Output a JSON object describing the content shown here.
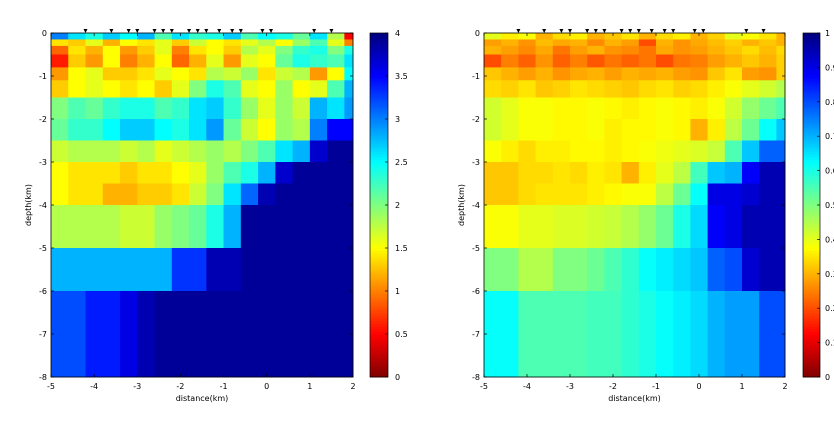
{
  "chart_data": [
    {
      "type": "heatmap",
      "title": "",
      "xlabel": "distance(km)",
      "ylabel": "depth(km)",
      "xlim": [
        -5,
        2
      ],
      "ylim": [
        -8,
        0
      ],
      "x_ticks": [
        -5,
        -4,
        -3,
        -2,
        -1,
        0,
        1,
        2
      ],
      "y_ticks": [
        0,
        -1,
        -2,
        -3,
        -4,
        -5,
        -6,
        -7,
        -8
      ],
      "colorbar": {
        "min": 0,
        "max": 4,
        "ticks": [
          0,
          0.5,
          1,
          1.5,
          2,
          2.5,
          3,
          3.5,
          4
        ]
      },
      "station_x": [
        -4.2,
        -3.6,
        -3.2,
        -3.0,
        -2.6,
        -2.4,
        -2.2,
        -1.8,
        -1.6,
        -1.4,
        -1.1,
        -0.8,
        -0.6,
        -0.1,
        0.1,
        1.1,
        1.5
      ],
      "x_edges": [
        -5,
        -4.6,
        -4.2,
        -3.8,
        -3.4,
        -3.0,
        -2.6,
        -2.2,
        -1.8,
        -1.4,
        -1.0,
        -0.6,
        -0.2,
        0.2,
        0.6,
        1.0,
        1.4,
        1.8,
        2.0
      ],
      "layers": [
        {
          "top": 0,
          "bottom": -0.15,
          "values": [
            3.0,
            2.6,
            2.4,
            2.7,
            2.5,
            2.8,
            2.2,
            2.6,
            2.3,
            2.4,
            2.7,
            2.2,
            2.5,
            2.4,
            2.1,
            2.6,
            1.8,
            0.5
          ]
        },
        {
          "top": -0.15,
          "bottom": -0.3,
          "values": [
            1.4,
            1.3,
            1.6,
            1.2,
            1.5,
            1.4,
            1.6,
            1.3,
            1.7,
            1.5,
            1.4,
            1.6,
            1.8,
            1.5,
            1.9,
            2.2,
            1.6,
            1.0
          ]
        },
        {
          "top": -0.3,
          "bottom": -0.5,
          "values": [
            0.9,
            1.4,
            1.2,
            1.5,
            1.1,
            1.3,
            1.6,
            1.0,
            1.4,
            1.5,
            1.3,
            1.8,
            1.6,
            2.0,
            2.3,
            2.4,
            2.0,
            2.4
          ]
        },
        {
          "top": -0.5,
          "bottom": -0.8,
          "values": [
            0.6,
            1.3,
            1.1,
            1.5,
            1.0,
            1.2,
            1.5,
            0.9,
            1.2,
            1.6,
            1.1,
            1.6,
            1.5,
            2.1,
            2.4,
            2.3,
            2.2,
            2.6
          ]
        },
        {
          "top": -0.8,
          "bottom": -1.1,
          "values": [
            1.1,
            1.5,
            1.6,
            1.3,
            1.3,
            1.4,
            1.6,
            1.5,
            1.4,
            1.8,
            1.7,
            1.9,
            1.4,
            1.7,
            1.8,
            1.1,
            1.5,
            2.5
          ]
        },
        {
          "top": -1.1,
          "bottom": -1.5,
          "values": [
            1.3,
            1.5,
            1.6,
            1.5,
            1.4,
            1.5,
            1.3,
            1.6,
            2.0,
            2.4,
            2.2,
            1.6,
            1.5,
            1.9,
            1.5,
            1.6,
            2.2,
            2.8
          ]
        },
        {
          "top": -1.5,
          "bottom": -2.0,
          "values": [
            2.0,
            2.2,
            2.1,
            2.3,
            2.4,
            2.4,
            2.2,
            2.3,
            2.6,
            2.7,
            2.3,
            1.9,
            1.6,
            1.9,
            1.7,
            2.8,
            2.6,
            2.9
          ]
        },
        {
          "top": -2.0,
          "bottom": -2.5,
          "values": [
            2.1,
            2.3,
            2.3,
            2.5,
            2.7,
            2.7,
            2.5,
            2.4,
            2.6,
            2.9,
            2.1,
            1.7,
            1.5,
            1.9,
            1.8,
            3.0,
            3.5,
            3.5
          ]
        },
        {
          "top": -2.5,
          "bottom": -3.0,
          "values": [
            1.7,
            1.8,
            1.8,
            1.8,
            1.7,
            1.8,
            1.6,
            1.7,
            1.8,
            1.9,
            1.8,
            2.0,
            2.2,
            2.6,
            2.8,
            3.7,
            3.9,
            3.9
          ]
        },
        {
          "top": -3.0,
          "bottom": -3.5,
          "values": [
            1.5,
            1.4,
            1.4,
            1.4,
            1.3,
            1.4,
            1.4,
            1.5,
            1.6,
            1.9,
            2.2,
            2.4,
            2.8,
            3.7,
            3.9,
            3.9,
            3.9,
            3.9
          ]
        },
        {
          "top": -3.5,
          "bottom": -4.0,
          "values": [
            1.5,
            1.4,
            1.4,
            1.2,
            1.2,
            1.3,
            1.3,
            1.4,
            1.7,
            2.0,
            2.6,
            3.1,
            3.8,
            3.9,
            3.9,
            3.9,
            3.9,
            3.9
          ]
        },
        {
          "top": -4.0,
          "bottom": -5.0,
          "values": [
            1.8,
            1.8,
            1.8,
            1.8,
            1.7,
            1.7,
            1.9,
            2.0,
            2.1,
            2.4,
            2.8,
            3.9,
            3.9,
            3.9,
            3.9,
            3.9,
            3.9,
            3.9
          ]
        },
        {
          "top": -5.0,
          "bottom": -6.0,
          "values": [
            2.8,
            2.8,
            2.8,
            2.8,
            2.8,
            2.8,
            2.8,
            3.3,
            3.3,
            3.8,
            3.8,
            3.9,
            3.9,
            3.9,
            3.9,
            3.9,
            3.9,
            3.9
          ]
        },
        {
          "top": -6.0,
          "bottom": -8.0,
          "values": [
            3.2,
            3.2,
            3.4,
            3.4,
            3.6,
            3.8,
            3.9,
            3.9,
            3.9,
            3.9,
            3.9,
            3.9,
            3.9,
            3.9,
            3.9,
            3.9,
            3.9,
            3.9
          ]
        }
      ]
    },
    {
      "type": "heatmap",
      "title": "",
      "xlabel": "distance(km)",
      "ylabel": "depth(km)",
      "xlim": [
        -5,
        2
      ],
      "ylim": [
        -8,
        0
      ],
      "x_ticks": [
        -5,
        -4,
        -3,
        -2,
        -1,
        0,
        1,
        2
      ],
      "y_ticks": [
        0,
        -1,
        -2,
        -3,
        -4,
        -5,
        -6,
        -7,
        -8
      ],
      "colorbar": {
        "min": 0,
        "max": 1,
        "ticks": [
          0,
          0.1,
          0.2,
          0.3,
          0.4,
          0.5,
          0.6,
          0.7,
          0.8,
          0.9,
          1
        ]
      },
      "station_x": [
        -4.2,
        -3.6,
        -3.2,
        -3.0,
        -2.6,
        -2.4,
        -2.2,
        -1.8,
        -1.6,
        -1.4,
        -1.1,
        -0.8,
        -0.6,
        -0.1,
        0.1,
        1.1,
        1.5
      ],
      "x_edges": [
        -5,
        -4.6,
        -4.2,
        -3.8,
        -3.4,
        -3.0,
        -2.6,
        -2.2,
        -1.8,
        -1.4,
        -1.0,
        -0.6,
        -0.2,
        0.2,
        0.6,
        1.0,
        1.4,
        1.8,
        2.0
      ],
      "layers": [
        {
          "top": 0,
          "bottom": -0.15,
          "values": [
            0.4,
            0.36,
            0.38,
            0.3,
            0.34,
            0.36,
            0.3,
            0.32,
            0.35,
            0.3,
            0.34,
            0.36,
            0.3,
            0.33,
            0.4,
            0.38,
            0.35,
            0.3
          ]
        },
        {
          "top": -0.15,
          "bottom": -0.3,
          "values": [
            0.28,
            0.3,
            0.27,
            0.31,
            0.29,
            0.3,
            0.26,
            0.3,
            0.28,
            0.2,
            0.3,
            0.27,
            0.29,
            0.31,
            0.33,
            0.3,
            0.32,
            0.3
          ]
        },
        {
          "top": -0.3,
          "bottom": -0.5,
          "values": [
            0.3,
            0.28,
            0.26,
            0.29,
            0.24,
            0.28,
            0.3,
            0.27,
            0.26,
            0.24,
            0.29,
            0.27,
            0.28,
            0.3,
            0.32,
            0.34,
            0.31,
            0.34
          ]
        },
        {
          "top": -0.5,
          "bottom": -0.8,
          "values": [
            0.2,
            0.25,
            0.22,
            0.27,
            0.22,
            0.25,
            0.21,
            0.24,
            0.22,
            0.24,
            0.2,
            0.24,
            0.25,
            0.28,
            0.3,
            0.32,
            0.3,
            0.33
          ]
        },
        {
          "top": -0.8,
          "bottom": -1.1,
          "values": [
            0.32,
            0.3,
            0.28,
            0.3,
            0.27,
            0.29,
            0.3,
            0.28,
            0.3,
            0.29,
            0.3,
            0.28,
            0.27,
            0.32,
            0.35,
            0.28,
            0.27,
            0.33
          ]
        },
        {
          "top": -1.1,
          "bottom": -1.5,
          "values": [
            0.34,
            0.33,
            0.35,
            0.32,
            0.33,
            0.35,
            0.34,
            0.33,
            0.32,
            0.34,
            0.35,
            0.33,
            0.34,
            0.36,
            0.38,
            0.4,
            0.42,
            0.45
          ]
        },
        {
          "top": -1.5,
          "bottom": -2.0,
          "values": [
            0.42,
            0.4,
            0.38,
            0.38,
            0.37,
            0.37,
            0.38,
            0.37,
            0.36,
            0.37,
            0.38,
            0.37,
            0.36,
            0.38,
            0.42,
            0.48,
            0.52,
            0.55
          ]
        },
        {
          "top": -2.0,
          "bottom": -2.5,
          "values": [
            0.42,
            0.4,
            0.38,
            0.38,
            0.37,
            0.37,
            0.38,
            0.36,
            0.37,
            0.37,
            0.38,
            0.37,
            0.3,
            0.36,
            0.44,
            0.52,
            0.62,
            0.68
          ]
        },
        {
          "top": -2.5,
          "bottom": -3.0,
          "values": [
            0.38,
            0.36,
            0.34,
            0.36,
            0.36,
            0.37,
            0.37,
            0.36,
            0.37,
            0.38,
            0.39,
            0.4,
            0.41,
            0.43,
            0.55,
            0.68,
            0.78,
            0.78
          ]
        },
        {
          "top": -3.0,
          "bottom": -3.5,
          "values": [
            0.32,
            0.32,
            0.34,
            0.34,
            0.35,
            0.34,
            0.36,
            0.35,
            0.3,
            0.36,
            0.4,
            0.44,
            0.56,
            0.68,
            0.7,
            0.88,
            0.95,
            0.95
          ]
        },
        {
          "top": -3.5,
          "bottom": -4.0,
          "values": [
            0.32,
            0.32,
            0.34,
            0.35,
            0.35,
            0.35,
            0.36,
            0.37,
            0.38,
            0.38,
            0.44,
            0.52,
            0.62,
            0.9,
            0.9,
            0.92,
            0.95,
            0.95
          ]
        },
        {
          "top": -4.0,
          "bottom": -5.0,
          "values": [
            0.38,
            0.38,
            0.4,
            0.4,
            0.41,
            0.41,
            0.42,
            0.43,
            0.45,
            0.48,
            0.52,
            0.6,
            0.66,
            0.88,
            0.9,
            0.95,
            0.95,
            0.95
          ]
        },
        {
          "top": -5.0,
          "bottom": -6.0,
          "values": [
            0.5,
            0.5,
            0.45,
            0.45,
            0.5,
            0.5,
            0.52,
            0.55,
            0.58,
            0.62,
            0.64,
            0.66,
            0.68,
            0.78,
            0.8,
            0.92,
            0.95,
            0.95
          ]
        },
        {
          "top": -6.0,
          "bottom": -8.0,
          "values": [
            0.62,
            0.62,
            0.55,
            0.55,
            0.55,
            0.55,
            0.56,
            0.56,
            0.58,
            0.6,
            0.62,
            0.64,
            0.66,
            0.7,
            0.72,
            0.72,
            0.8,
            0.8
          ]
        }
      ]
    }
  ]
}
